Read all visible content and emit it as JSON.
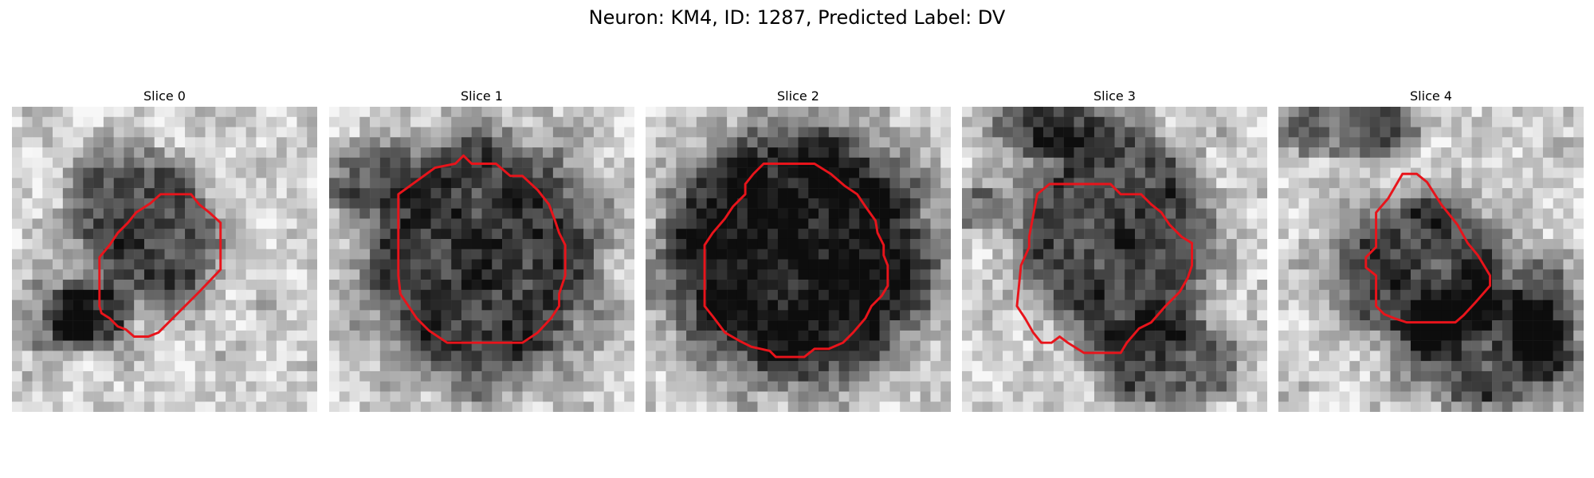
{
  "figure": {
    "title": "Neuron: KM4, ID: 1287, Predicted Label: DV"
  },
  "colors": {
    "contour": "#e8141b"
  },
  "slices": [
    {
      "title": "Slice 0",
      "cx": 13,
      "cy": 12,
      "rx": 4.5,
      "ry": 5.5,
      "angle": -35,
      "darkness": 0.55,
      "contour": [
        [
          16.6,
          8.6
        ],
        [
          17.6,
          8.6
        ],
        [
          18.4,
          9.6
        ],
        [
          19.4,
          10.4
        ],
        [
          20.5,
          11.4
        ],
        [
          20.5,
          16.0
        ],
        [
          18.4,
          18.2
        ],
        [
          16.6,
          20.0
        ],
        [
          15.2,
          21.4
        ],
        [
          14.4,
          22.2
        ],
        [
          13.4,
          22.6
        ],
        [
          12.0,
          22.6
        ],
        [
          11.2,
          21.9
        ],
        [
          10.4,
          21.6
        ],
        [
          9.6,
          20.8
        ],
        [
          8.8,
          20.3
        ],
        [
          8.6,
          19.6
        ],
        [
          8.6,
          14.8
        ],
        [
          9.6,
          13.6
        ],
        [
          10.4,
          12.4
        ],
        [
          11.4,
          11.4
        ],
        [
          12.2,
          10.4
        ],
        [
          13.6,
          9.5
        ],
        [
          14.6,
          8.6
        ]
      ],
      "extras": [
        {
          "x": 7.8,
          "y": 20.8,
          "rx": 2.6,
          "ry": 2.2,
          "d": 0.55
        },
        {
          "x": 4,
          "y": 20,
          "rx": 2.5,
          "ry": 3,
          "d": 0.3
        }
      ]
    },
    {
      "title": "Slice 1",
      "cx": 15,
      "cy": 15,
      "rx": 8,
      "ry": 8.5,
      "angle": 0,
      "darkness": 0.6,
      "contour": [
        [
          10.4,
          6.0
        ],
        [
          12.4,
          5.6
        ],
        [
          13.2,
          4.8
        ],
        [
          14.0,
          5.6
        ],
        [
          16.4,
          5.6
        ],
        [
          17.8,
          6.8
        ],
        [
          19.0,
          6.8
        ],
        [
          20.5,
          8.2
        ],
        [
          21.6,
          9.6
        ],
        [
          22.2,
          11.2
        ],
        [
          22.6,
          12.4
        ],
        [
          23.2,
          13.6
        ],
        [
          23.2,
          16.6
        ],
        [
          22.6,
          18.4
        ],
        [
          22.6,
          19.6
        ],
        [
          21.8,
          20.8
        ],
        [
          20.5,
          22.2
        ],
        [
          19.0,
          23.2
        ],
        [
          11.6,
          23.2
        ],
        [
          9.8,
          22.0
        ],
        [
          8.6,
          20.8
        ],
        [
          7.8,
          19.6
        ],
        [
          7.0,
          18.4
        ],
        [
          6.8,
          16.6
        ],
        [
          6.8,
          8.6
        ]
      ],
      "extras": [
        {
          "x": 4,
          "y": 7,
          "rx": 3,
          "ry": 2.5,
          "d": 0.3
        }
      ]
    },
    {
      "title": "Slice 2",
      "cx": 15,
      "cy": 14.5,
      "rx": 9,
      "ry": 8.5,
      "angle": 0,
      "darkness": 0.75,
      "contour": [
        [
          10.6,
          6.6
        ],
        [
          11.6,
          5.6
        ],
        [
          16.6,
          5.6
        ],
        [
          18.2,
          6.6
        ],
        [
          19.6,
          7.8
        ],
        [
          20.8,
          8.6
        ],
        [
          21.6,
          9.8
        ],
        [
          22.6,
          11.2
        ],
        [
          22.8,
          12.4
        ],
        [
          23.4,
          13.6
        ],
        [
          23.4,
          14.6
        ],
        [
          23.8,
          15.6
        ],
        [
          23.8,
          17.6
        ],
        [
          23.2,
          18.6
        ],
        [
          22.2,
          19.6
        ],
        [
          21.6,
          20.8
        ],
        [
          20.4,
          22.2
        ],
        [
          19.4,
          23.2
        ],
        [
          18.0,
          23.8
        ],
        [
          16.6,
          23.8
        ],
        [
          15.6,
          24.6
        ],
        [
          12.8,
          24.6
        ],
        [
          12.2,
          24.0
        ],
        [
          10.4,
          23.6
        ],
        [
          9.2,
          23.0
        ],
        [
          7.8,
          22.2
        ],
        [
          6.6,
          20.6
        ],
        [
          5.8,
          19.6
        ],
        [
          5.8,
          13.6
        ],
        [
          6.6,
          12.4
        ],
        [
          7.8,
          11.0
        ],
        [
          8.6,
          9.8
        ],
        [
          9.8,
          8.6
        ],
        [
          9.8,
          7.6
        ]
      ],
      "extras": []
    },
    {
      "title": "Slice 3",
      "cx": 15,
      "cy": 12.5,
      "rx": 6.5,
      "ry": 7.5,
      "angle": -15,
      "darkness": 0.55,
      "contour": [
        [
          7.4,
          8.6
        ],
        [
          8.6,
          7.6
        ],
        [
          14.6,
          7.6
        ],
        [
          15.6,
          8.6
        ],
        [
          17.6,
          8.6
        ],
        [
          18.6,
          9.6
        ],
        [
          19.6,
          10.4
        ],
        [
          20.4,
          11.6
        ],
        [
          21.6,
          12.8
        ],
        [
          22.6,
          13.4
        ],
        [
          22.6,
          15.6
        ],
        [
          22.2,
          16.8
        ],
        [
          21.4,
          18.2
        ],
        [
          20.0,
          19.6
        ],
        [
          18.6,
          21.2
        ],
        [
          17.4,
          21.8
        ],
        [
          16.2,
          23.2
        ],
        [
          15.6,
          24.2
        ],
        [
          12.0,
          24.2
        ],
        [
          10.4,
          23.2
        ],
        [
          9.6,
          22.6
        ],
        [
          8.8,
          23.2
        ],
        [
          7.8,
          23.2
        ],
        [
          7.0,
          22.2
        ],
        [
          6.2,
          20.8
        ],
        [
          5.4,
          19.6
        ],
        [
          5.8,
          15.6
        ],
        [
          6.6,
          13.8
        ],
        [
          6.6,
          12.8
        ]
      ],
      "extras": [
        {
          "x": 20,
          "y": 25,
          "rx": 5,
          "ry": 3,
          "d": 0.45
        },
        {
          "x": 8,
          "y": 2,
          "rx": 4,
          "ry": 1.8,
          "d": 0.45
        },
        {
          "x": 1.5,
          "y": 10,
          "rx": 2,
          "ry": 1.5,
          "d": 0.35
        }
      ]
    },
    {
      "title": "Slice 4",
      "cx": 14,
      "cy": 16,
      "rx": 6,
      "ry": 5,
      "angle": 0,
      "darkness": 0.55,
      "contour": [
        [
          12.2,
          6.6
        ],
        [
          13.6,
          6.6
        ],
        [
          14.6,
          7.4
        ],
        [
          16.0,
          9.6
        ],
        [
          17.6,
          11.6
        ],
        [
          18.6,
          13.4
        ],
        [
          19.6,
          14.6
        ],
        [
          20.8,
          16.6
        ],
        [
          20.8,
          17.6
        ],
        [
          19.4,
          19.2
        ],
        [
          18.2,
          20.5
        ],
        [
          17.4,
          21.2
        ],
        [
          12.6,
          21.2
        ],
        [
          11.4,
          20.8
        ],
        [
          10.4,
          20.4
        ],
        [
          9.6,
          19.6
        ],
        [
          9.6,
          16.6
        ],
        [
          8.6,
          15.8
        ],
        [
          8.6,
          14.8
        ],
        [
          9.6,
          13.8
        ],
        [
          9.6,
          10.4
        ],
        [
          10.8,
          9.0
        ]
      ],
      "extras": [
        {
          "x": 21,
          "y": 24,
          "rx": 6,
          "ry": 4,
          "d": 0.5
        },
        {
          "x": 7,
          "y": 2,
          "rx": 5,
          "ry": 2,
          "d": 0.45
        },
        {
          "x": 26,
          "y": 20,
          "rx": 2,
          "ry": 4,
          "d": 0.4
        }
      ]
    }
  ]
}
